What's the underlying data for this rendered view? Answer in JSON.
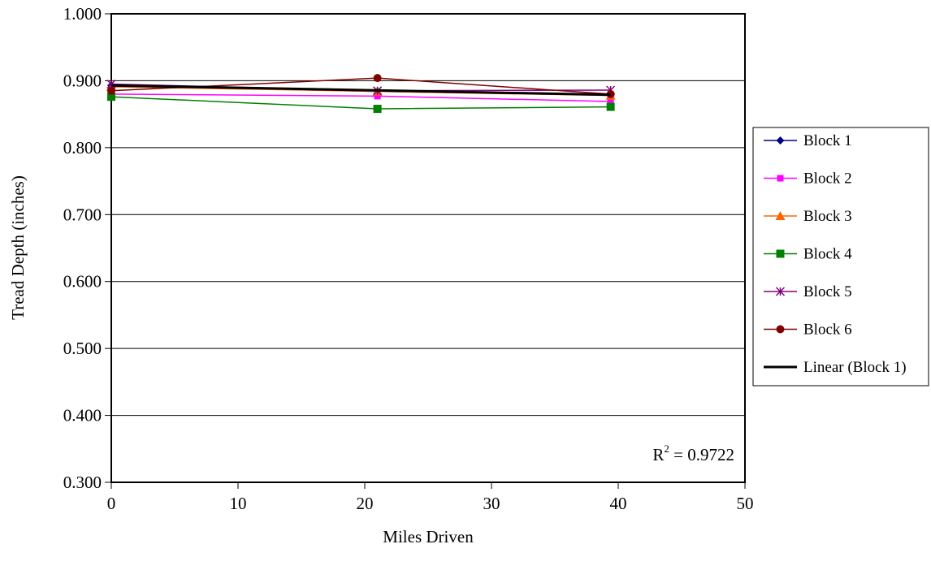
{
  "chart_data": {
    "type": "line",
    "xlabel": "Miles Driven",
    "ylabel": "Tread Depth (inches)",
    "xlim": [
      0,
      50
    ],
    "ylim": [
      0.3,
      1.0
    ],
    "x_ticks": [
      "0",
      "10",
      "20",
      "30",
      "40",
      "50"
    ],
    "y_ticks": [
      "0.300",
      "0.400",
      "0.500",
      "0.600",
      "0.700",
      "0.800",
      "0.900",
      "1.000"
    ],
    "grid": "horizontal",
    "legend_position": "right",
    "series": [
      {
        "name": "Block 1",
        "color": "#000080",
        "marker": "diamond",
        "x": [
          0,
          21,
          39.4
        ],
        "y": [
          0.893,
          0.884,
          0.879
        ]
      },
      {
        "name": "Block 2",
        "color": "#FF00FF",
        "marker": "square",
        "x": [
          0,
          21,
          39.4
        ],
        "y": [
          0.88,
          0.877,
          0.869
        ]
      },
      {
        "name": "Block 3",
        "color": "#FF6600",
        "marker": "triangle",
        "x": [
          0,
          21,
          39.4
        ],
        "y": [
          0.891,
          0.884,
          0.878
        ]
      },
      {
        "name": "Block 4",
        "color": "#008000",
        "marker": "square-large",
        "x": [
          0,
          21,
          39.4
        ],
        "y": [
          0.876,
          0.858,
          0.861
        ]
      },
      {
        "name": "Block 5",
        "color": "#800080",
        "marker": "asterisk",
        "x": [
          0,
          21,
          39.4
        ],
        "y": [
          0.895,
          0.885,
          0.886
        ]
      },
      {
        "name": "Block 6",
        "color": "#800000",
        "marker": "circle",
        "x": [
          0,
          21,
          39.4
        ],
        "y": [
          0.885,
          0.904,
          0.88
        ]
      }
    ],
    "trendline": {
      "name": "Linear (Block 1)",
      "color": "#000000",
      "x": [
        0,
        39.4
      ],
      "y": [
        0.893,
        0.879
      ]
    },
    "annotations": {
      "r2_base": "R",
      "r2_sup": "2",
      "r2_value": " = 0.9722"
    }
  }
}
